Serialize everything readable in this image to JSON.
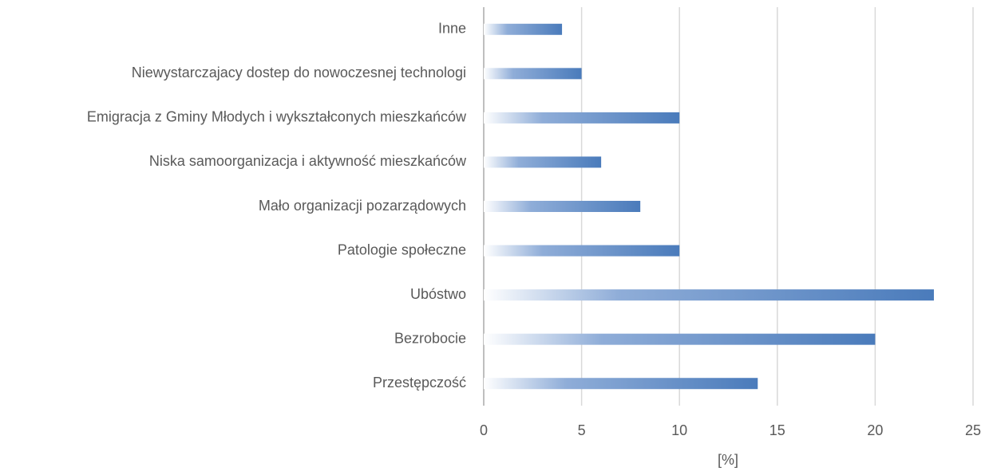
{
  "chart_data": {
    "type": "bar",
    "orientation": "horizontal",
    "categories": [
      "Inne",
      "Niewystarczajacy dostep do nowoczesnej technologi",
      "Emigracja z Gminy Młodych i wykształconych mieszkańców",
      "Niska samoorganizacja i aktywność mieszkańców",
      "Mało organizacji pozarządowych",
      "Patologie społeczne",
      "Ubóstwo",
      "Bezrobocie",
      "Przestępczość"
    ],
    "values": [
      4,
      5,
      10,
      6,
      8,
      10,
      23,
      20,
      14
    ],
    "color": "#4f81bd",
    "x_label": "[%]",
    "xlim": [
      0,
      25
    ],
    "xticks": [
      0,
      5,
      10,
      15,
      20,
      25
    ],
    "grid": true
  }
}
